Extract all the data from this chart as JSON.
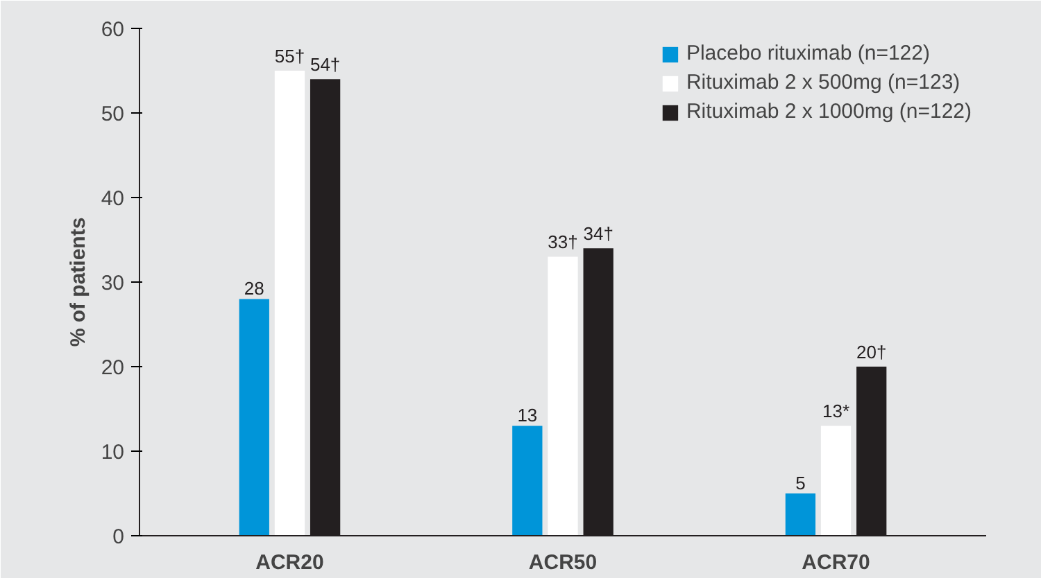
{
  "chart_data": {
    "type": "bar",
    "ylabel": "% of patients",
    "categories": [
      "ACR20",
      "ACR50",
      "ACR70"
    ],
    "series": [
      {
        "name": "Placebo rituximab (n=122)",
        "color": "#0095d9",
        "values": [
          28,
          13,
          5
        ],
        "value_labels": [
          "28",
          "13",
          "5"
        ]
      },
      {
        "name": "Rituximab 2 x 500mg (n=123)",
        "color": "#ffffff",
        "values": [
          55,
          33,
          13
        ],
        "value_labels": [
          "55†",
          "33†",
          "13*"
        ]
      },
      {
        "name": "Rituximab 2 x 1000mg (n=122)",
        "color": "#231f20",
        "values": [
          54,
          34,
          20
        ],
        "value_labels": [
          "54†",
          "34†",
          "20†"
        ]
      }
    ],
    "ylim": [
      0,
      60
    ],
    "yticks": [
      0,
      10,
      20,
      30,
      40,
      50,
      60
    ],
    "legend": "top right"
  }
}
